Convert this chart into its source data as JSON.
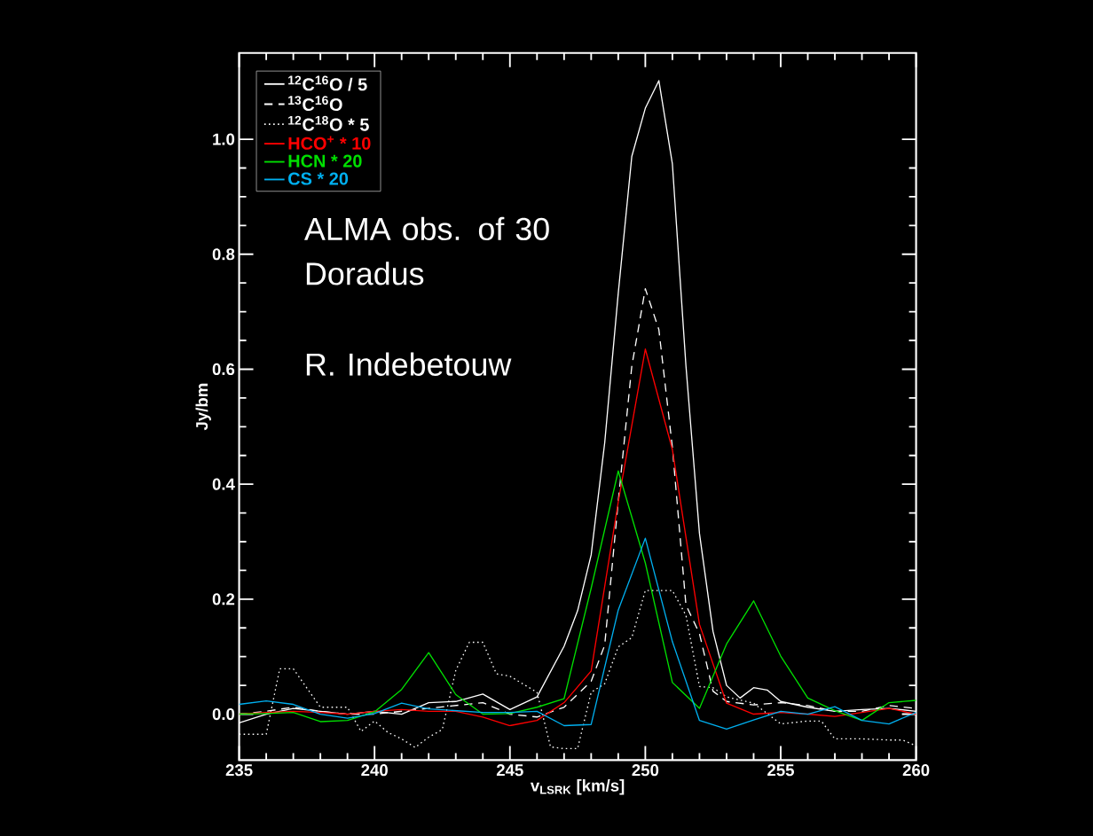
{
  "chart_data": {
    "type": "line",
    "xlabel": "v$_{LSRK}$ [km/s]",
    "ylabel": "Jy/bm",
    "xlim": [
      235,
      260
    ],
    "xticks": [
      235,
      240,
      245,
      250,
      255,
      260
    ],
    "ylim": [
      -0.08,
      1.15
    ],
    "yticks": [
      {
        "value": 0,
        "label": "0.0"
      },
      {
        "value": 0.2,
        "label": "0.2"
      },
      {
        "value": 0.4,
        "label": "0.4"
      },
      {
        "value": 0.6,
        "label": "0.6"
      },
      {
        "value": 0.8,
        "label": "0.8"
      },
      {
        "value": 1.0,
        "label": "1.0"
      }
    ],
    "legend": "top left",
    "annotations": [
      "ALMA obs. of 30 Doradus",
      "R. Indebetouw"
    ],
    "series": [
      {
        "name": "$^{12}$C$^{16}$O / 5",
        "color": "#ffffff",
        "line_style": "solid",
        "x": [
          235,
          236,
          237,
          238,
          239,
          240,
          241,
          242,
          243,
          244,
          245,
          246,
          247,
          247.5,
          248,
          248.5,
          249,
          249.5,
          250,
          250.5,
          251,
          251.5,
          252,
          252.5,
          253,
          253.5,
          254,
          254.5,
          255,
          256,
          257,
          258,
          259,
          260
        ],
        "values": [
          -0.015,
          0.0,
          0.01,
          0.005,
          0.0,
          0.005,
          0.0,
          0.02,
          0.022,
          0.035,
          0.008,
          0.03,
          0.118,
          0.18,
          0.277,
          0.472,
          0.732,
          0.97,
          1.054,
          1.102,
          0.957,
          0.606,
          0.314,
          0.144,
          0.05,
          0.028,
          0.046,
          0.042,
          0.022,
          0.012,
          0.005,
          0.008,
          0.01,
          0.005
        ]
      },
      {
        "name": "$^{13}$C$^{16}$O",
        "color": "#ffffff",
        "line_style": "dashed",
        "x": [
          235,
          236,
          237,
          238,
          239,
          240,
          241,
          242,
          243,
          244,
          245,
          246,
          247,
          248,
          248.5,
          249,
          249.5,
          250,
          250.5,
          251,
          251.5,
          252,
          252.5,
          253,
          254,
          255,
          256,
          257,
          258,
          259,
          260
        ],
        "values": [
          0.0,
          0.005,
          0.012,
          0.005,
          0.0,
          0.0,
          0.005,
          0.01,
          0.015,
          0.02,
          0.0,
          -0.005,
          0.012,
          0.057,
          0.12,
          0.37,
          0.605,
          0.74,
          0.669,
          0.464,
          0.19,
          0.14,
          0.04,
          0.022,
          0.016,
          0.02,
          0.015,
          0.005,
          0.005,
          0.015,
          0.01
        ]
      },
      {
        "name": "$^{12}$C$^{18}$O * 5",
        "color": "#ffffff",
        "line_style": "dotted",
        "x": [
          235,
          236,
          236.5,
          237,
          238,
          239,
          239.5,
          240,
          240.5,
          241,
          241.5,
          242,
          242.5,
          243,
          243.5,
          244,
          244.5,
          245,
          246,
          246.5,
          247,
          247.5,
          248,
          248.5,
          249,
          249.5,
          250,
          251,
          251.5,
          252,
          252.5,
          253,
          254,
          255,
          256,
          256.5,
          257,
          258,
          259,
          259.5,
          260
        ],
        "values": [
          -0.035,
          -0.035,
          0.079,
          0.079,
          0.012,
          0.012,
          -0.03,
          -0.012,
          -0.032,
          -0.043,
          -0.058,
          -0.04,
          -0.027,
          0.076,
          0.125,
          0.125,
          0.07,
          0.066,
          0.038,
          -0.057,
          -0.06,
          -0.06,
          0.038,
          0.053,
          0.117,
          0.133,
          0.215,
          0.215,
          0.172,
          0.048,
          0.046,
          0.03,
          0.019,
          -0.017,
          -0.012,
          -0.012,
          -0.043,
          -0.043,
          -0.045,
          -0.045,
          -0.055
        ]
      },
      {
        "name": "HCO$^{+}$ * 10",
        "color": "#ff0000",
        "line_style": "solid",
        "x": [
          235,
          236,
          237,
          238,
          239,
          240,
          241,
          242,
          243,
          244,
          245,
          246,
          247,
          248,
          249,
          250,
          251,
          252,
          253,
          254,
          255,
          256,
          257,
          258,
          259,
          260
        ],
        "values": [
          0.0,
          0.003,
          0.005,
          0.003,
          0.0,
          0.005,
          0.008,
          0.005,
          0.005,
          -0.005,
          -0.02,
          -0.011,
          0.02,
          0.075,
          0.369,
          0.635,
          0.46,
          0.156,
          0.019,
          0.0,
          0.003,
          0.0,
          -0.004,
          0.003,
          0.01,
          0.0
        ]
      },
      {
        "name": "HCN * 20",
        "color": "#00e000",
        "line_style": "solid",
        "x": [
          235,
          236,
          237,
          238,
          239,
          240,
          241,
          242,
          243,
          244,
          245,
          246,
          247,
          248,
          249,
          250,
          251,
          252,
          253,
          254,
          255,
          256,
          257,
          258,
          259,
          260
        ],
        "values": [
          0.0,
          0.001,
          0.003,
          -0.013,
          -0.011,
          0.004,
          0.043,
          0.107,
          0.034,
          0.0,
          0.001,
          0.012,
          0.027,
          0.219,
          0.423,
          0.263,
          0.055,
          0.01,
          0.122,
          0.197,
          0.101,
          0.028,
          0.006,
          -0.011,
          0.02,
          0.024
        ]
      },
      {
        "name": "CS * 20",
        "color": "#00b0f0",
        "line_style": "solid",
        "x": [
          235,
          236,
          237,
          238,
          239,
          240,
          241,
          242,
          243,
          244,
          245,
          246,
          247,
          248,
          249,
          250,
          251,
          252,
          253,
          254,
          255,
          256,
          257,
          258,
          259,
          260
        ],
        "values": [
          0.017,
          0.023,
          0.017,
          0.0,
          -0.007,
          0.001,
          0.019,
          0.009,
          0.006,
          0.003,
          0.003,
          0.005,
          -0.02,
          -0.018,
          0.181,
          0.306,
          0.126,
          -0.011,
          -0.026,
          -0.01,
          0.005,
          0.0,
          0.013,
          -0.011,
          -0.017,
          0.003
        ]
      }
    ]
  }
}
